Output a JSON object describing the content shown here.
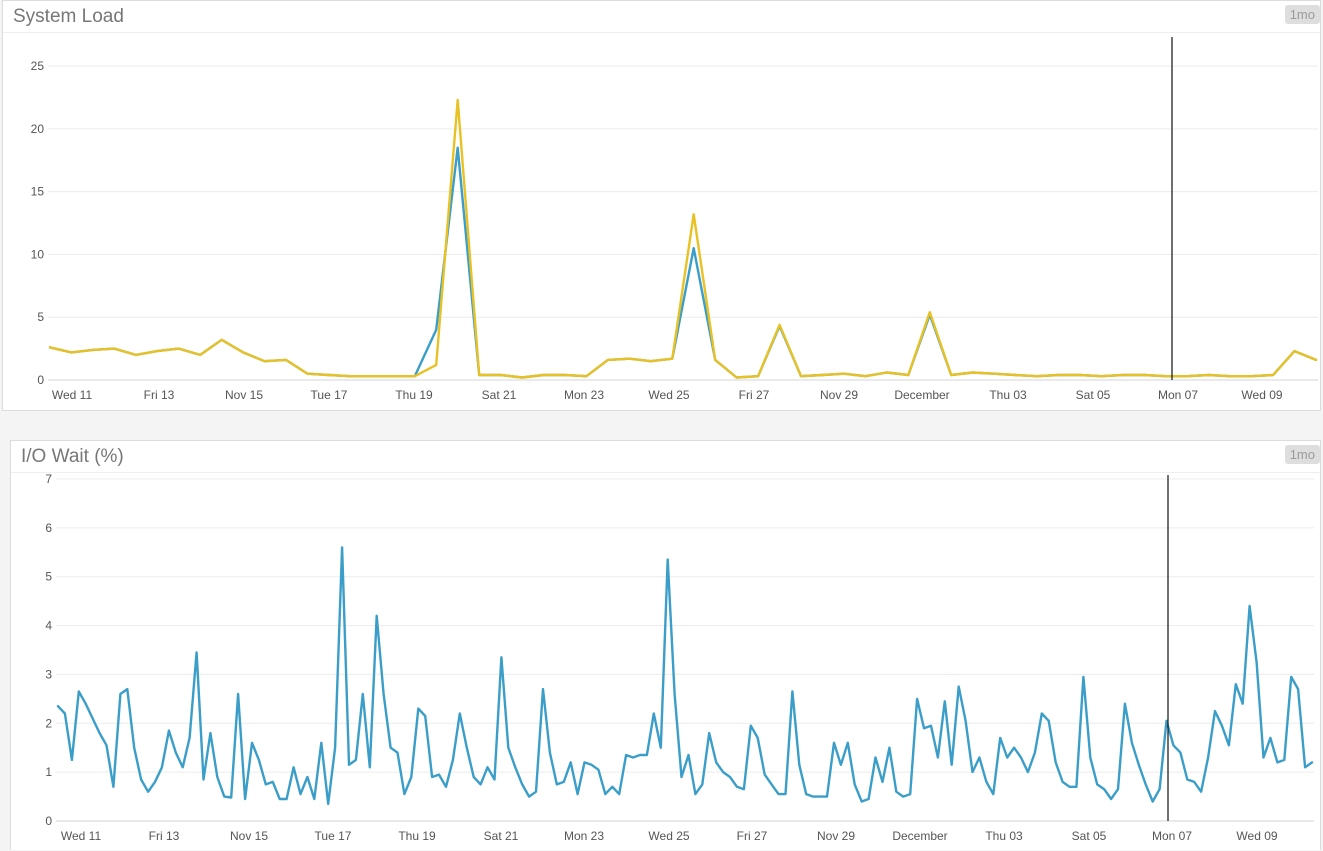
{
  "chart_data": [
    {
      "type": "line",
      "title": "System Load",
      "range_button": "1mo",
      "x": [
        "11-11",
        "11-11 12h",
        "11-12",
        "11-12 12h",
        "11-13",
        "11-13 12h",
        "11-14",
        "11-14 12h",
        "11-15",
        "11-15 12h",
        "11-16",
        "11-16 12h",
        "11-17",
        "11-17 12h",
        "11-18",
        "11-18 12h",
        "11-19",
        "11-19 12h",
        "11-20",
        "11-20 12h",
        "11-21",
        "11-21 12h",
        "11-22",
        "11-22 12h",
        "11-23",
        "11-23 12h",
        "11-24",
        "11-24 12h",
        "11-25",
        "11-25 12h",
        "11-26",
        "11-26 12h",
        "11-27",
        "11-27 12h",
        "11-28",
        "11-28 12h",
        "11-29",
        "11-29 12h",
        "11-30",
        "11-30 12h",
        "12-01",
        "12-01 12h",
        "12-02",
        "12-02 12h",
        "12-03",
        "12-03 12h",
        "12-04",
        "12-04 12h",
        "12-05",
        "12-05 12h",
        "12-06",
        "12-06 12h",
        "12-07",
        "12-07 12h",
        "12-08",
        "12-08 12h",
        "12-09",
        "12-09 12h",
        "12-10",
        "12-10 12h"
      ],
      "x_tick_labels": [
        "Wed 11",
        "Fri 13",
        "Nov 15",
        "Tue 17",
        "Thu 19",
        "Sat 21",
        "Mon 23",
        "Wed 25",
        "Fri 27",
        "Nov 29",
        "December",
        "Thu 03",
        "Sat 05",
        "Mon 07",
        "Wed 09"
      ],
      "series": [
        {
          "color": "#3a9ec8",
          "values": [
            2.6,
            2.2,
            2.4,
            2.5,
            2.0,
            2.3,
            2.5,
            2.0,
            3.2,
            2.2,
            1.5,
            1.6,
            0.5,
            0.4,
            0.3,
            0.3,
            0.3,
            0.3,
            4.0,
            18.5,
            0.4,
            0.4,
            0.2,
            0.4,
            0.4,
            0.3,
            1.6,
            1.7,
            1.5,
            1.7,
            10.5,
            1.6,
            0.2,
            0.3,
            4.3,
            0.3,
            0.4,
            0.5,
            0.3,
            0.6,
            0.4,
            5.2,
            0.4,
            0.6,
            0.5,
            0.4,
            0.3,
            0.4,
            0.4,
            0.3,
            0.4,
            0.4,
            0.3,
            0.3,
            0.4,
            0.3,
            0.3,
            0.4,
            2.3,
            1.6
          ]
        },
        {
          "color": "#e8c224",
          "values": [
            2.6,
            2.2,
            2.4,
            2.5,
            2.0,
            2.3,
            2.5,
            2.0,
            3.2,
            2.2,
            1.5,
            1.6,
            0.5,
            0.4,
            0.3,
            0.3,
            0.3,
            0.3,
            1.2,
            22.3,
            0.4,
            0.4,
            0.2,
            0.4,
            0.4,
            0.3,
            1.6,
            1.7,
            1.5,
            1.7,
            13.2,
            1.6,
            0.2,
            0.3,
            4.4,
            0.3,
            0.4,
            0.5,
            0.3,
            0.6,
            0.4,
            5.4,
            0.4,
            0.6,
            0.5,
            0.4,
            0.3,
            0.4,
            0.4,
            0.3,
            0.4,
            0.4,
            0.3,
            0.3,
            0.4,
            0.3,
            0.3,
            0.4,
            2.3,
            1.6
          ]
        }
      ],
      "ylim": [
        0,
        27
      ],
      "y_ticks": [
        0,
        5,
        10,
        15,
        20,
        25
      ]
    },
    {
      "type": "line",
      "title": "I/O Wait (%)",
      "range_button": "1mo",
      "x_tick_labels": [
        "Wed 11",
        "Fri 13",
        "Nov 15",
        "Tue 17",
        "Thu 19",
        "Sat 21",
        "Mon 23",
        "Wed 25",
        "Fri 27",
        "Nov 29",
        "December",
        "Thu 03",
        "Sat 05",
        "Mon 07",
        "Wed 09"
      ],
      "series": [
        {
          "color": "#3a9ec8",
          "values": [
            2.35,
            2.2,
            1.25,
            2.65,
            2.4,
            2.1,
            1.8,
            1.55,
            0.7,
            2.6,
            2.7,
            1.5,
            0.85,
            0.6,
            0.8,
            1.1,
            1.85,
            1.4,
            1.1,
            1.7,
            3.45,
            0.85,
            1.8,
            0.9,
            0.5,
            0.48,
            2.6,
            0.45,
            1.6,
            1.25,
            0.75,
            0.8,
            0.45,
            0.45,
            1.1,
            0.55,
            0.9,
            0.45,
            1.6,
            0.35,
            1.5,
            5.6,
            1.15,
            1.25,
            2.6,
            1.1,
            4.2,
            2.6,
            1.5,
            1.4,
            0.55,
            0.9,
            2.3,
            2.15,
            0.9,
            0.95,
            0.7,
            1.25,
            2.2,
            1.5,
            0.9,
            0.75,
            1.1,
            0.85,
            3.35,
            1.5,
            1.1,
            0.75,
            0.5,
            0.6,
            2.7,
            1.4,
            0.75,
            0.8,
            1.2,
            0.55,
            1.2,
            1.15,
            1.05,
            0.55,
            0.7,
            0.55,
            1.35,
            1.3,
            1.35,
            1.35,
            2.2,
            1.5,
            5.35,
            2.6,
            0.9,
            1.35,
            0.55,
            0.75,
            1.8,
            1.2,
            1.0,
            0.9,
            0.7,
            0.65,
            1.95,
            1.7,
            0.95,
            0.75,
            0.55,
            0.55,
            2.65,
            1.15,
            0.55,
            0.5,
            0.5,
            0.5,
            1.6,
            1.15,
            1.6,
            0.75,
            0.4,
            0.45,
            1.3,
            0.8,
            1.5,
            0.6,
            0.5,
            0.55,
            2.5,
            1.9,
            1.95,
            1.3,
            2.45,
            1.15,
            2.75,
            2.05,
            1.0,
            1.3,
            0.8,
            0.55,
            1.7,
            1.3,
            1.5,
            1.3,
            1.0,
            1.4,
            2.2,
            2.05,
            1.2,
            0.8,
            0.7,
            0.7,
            2.95,
            1.3,
            0.75,
            0.65,
            0.45,
            0.65,
            2.4,
            1.6,
            1.15,
            0.75,
            0.4,
            0.65,
            2.05,
            1.55,
            1.4,
            0.85,
            0.8,
            0.6,
            1.3,
            2.25,
            1.95,
            1.55,
            2.8,
            2.4,
            4.4,
            3.25,
            1.3,
            1.7,
            1.2,
            1.25,
            2.95,
            2.7,
            1.1,
            1.2
          ]
        }
      ],
      "ylim": [
        0,
        7
      ],
      "y_ticks": [
        0,
        1,
        2,
        3,
        4,
        5,
        6,
        7
      ]
    }
  ]
}
